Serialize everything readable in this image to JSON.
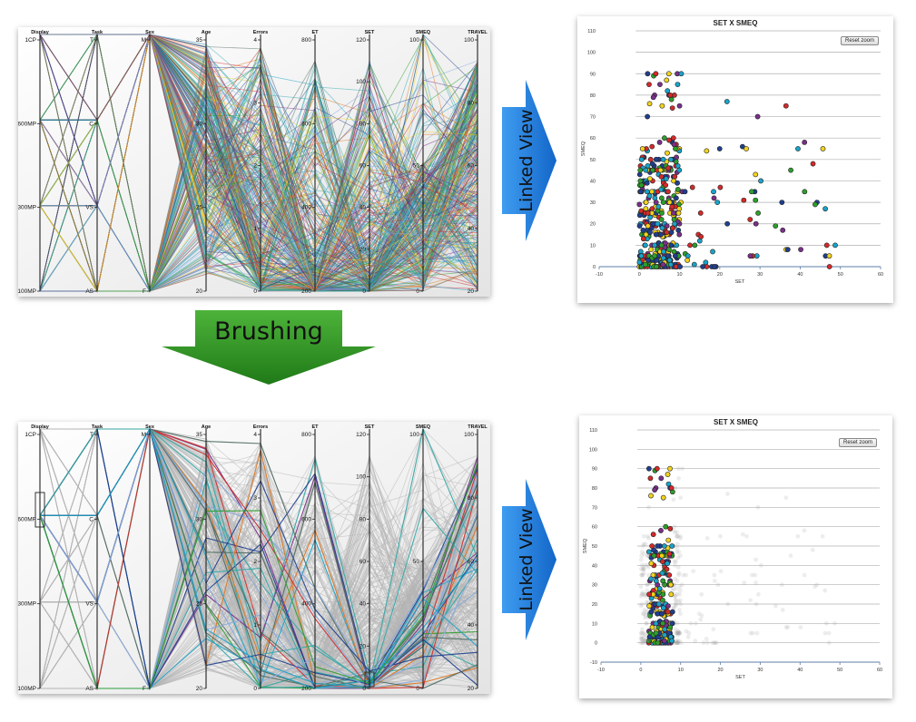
{
  "arrows": {
    "brushing_label": "Brushing",
    "linked_view_top": "Linked View",
    "linked_view_bottom": "Linked View",
    "blue": "#1a78d8",
    "green": "#2e8b1e"
  },
  "chart_data": [
    {
      "type": "parallel_coordinates",
      "state": "before-brushing",
      "axes": [
        {
          "name": "Display",
          "ticks": [
            "1CP",
            "600MP",
            "300MP",
            "100MP"
          ]
        },
        {
          "name": "Task",
          "ticks": [
            "T",
            "C",
            "VS",
            "AS"
          ]
        },
        {
          "name": "Sex",
          "ticks": [
            "M",
            "F"
          ]
        },
        {
          "name": "Age",
          "ticks": [
            "35",
            "30",
            "25",
            "20"
          ],
          "range": [
            18,
            36
          ]
        },
        {
          "name": "Errors",
          "ticks": [
            "4",
            "3",
            "2",
            "1",
            "0"
          ],
          "range": [
            0,
            5
          ]
        },
        {
          "name": "ET",
          "ticks": [
            "800",
            "600",
            "400",
            "200"
          ],
          "range": [
            0,
            820
          ]
        },
        {
          "name": "SET",
          "ticks": [
            "120",
            "100",
            "80",
            "60",
            "40",
            "20",
            "0"
          ],
          "range": [
            0,
            130
          ]
        },
        {
          "name": "SMEQ",
          "ticks": [
            "100",
            "50",
            "0"
          ],
          "range": [
            0,
            110
          ]
        },
        {
          "name": "TRAVEL",
          "ticks": [
            "100",
            "80",
            "60",
            "40",
            "20"
          ],
          "range": [
            0,
            115
          ]
        }
      ]
    },
    {
      "type": "scatter",
      "state": "before-brushing",
      "title": "SET X SMEQ",
      "xlabel": "SET",
      "ylabel": "SMEQ",
      "xlim": [
        -10,
        60
      ],
      "ylim": [
        0,
        110
      ],
      "xticks": [
        "-10",
        "0",
        "10",
        "20",
        "30",
        "40",
        "50",
        "60"
      ],
      "yticks": [
        "0",
        "10",
        "20",
        "30",
        "40",
        "50",
        "60",
        "70",
        "80",
        "90",
        "100",
        "110"
      ],
      "reset_zoom": "Reset zoom"
    },
    {
      "type": "parallel_coordinates",
      "state": "after-brushing",
      "axes": [
        {
          "name": "Display",
          "ticks": [
            "1CP",
            "600MP",
            "300MP",
            "100MP"
          ]
        },
        {
          "name": "Task",
          "ticks": [
            "T",
            "C",
            "VS",
            "AS"
          ]
        },
        {
          "name": "Sex",
          "ticks": [
            "M",
            "F"
          ]
        },
        {
          "name": "Age",
          "ticks": [
            "35",
            "30",
            "25",
            "20"
          ],
          "range": [
            18,
            36
          ]
        },
        {
          "name": "Errors",
          "ticks": [
            "4",
            "3",
            "2",
            "1",
            "0"
          ],
          "range": [
            0,
            5
          ]
        },
        {
          "name": "ET",
          "ticks": [
            "800",
            "600",
            "400",
            "200"
          ],
          "range": [
            0,
            820
          ]
        },
        {
          "name": "SET",
          "ticks": [
            "120",
            "100",
            "80",
            "60",
            "40",
            "20",
            "0"
          ],
          "range": [
            0,
            130
          ]
        },
        {
          "name": "SMEQ",
          "ticks": [
            "100",
            "50",
            "0"
          ],
          "range": [
            0,
            110
          ]
        },
        {
          "name": "TRAVEL",
          "ticks": [
            "100",
            "80",
            "60",
            "40",
            "20"
          ],
          "range": [
            0,
            115
          ]
        }
      ]
    },
    {
      "type": "scatter",
      "state": "after-brushing",
      "title": "SET X SMEQ",
      "xlabel": "SET",
      "ylabel": "SMEQ",
      "xlim": [
        -10,
        60
      ],
      "ylim": [
        -10,
        110
      ],
      "xticks": [
        "-10",
        "0",
        "10",
        "20",
        "30",
        "40",
        "50",
        "60"
      ],
      "yticks": [
        "-10",
        "0",
        "10",
        "20",
        "30",
        "40",
        "50",
        "60",
        "70",
        "80",
        "90",
        "100",
        "110"
      ],
      "reset_zoom": "Reset zoom"
    }
  ],
  "palette": [
    "#1f3f8f",
    "#d42a2a",
    "#f2d21b",
    "#2c9f2c",
    "#19a3c9",
    "#7a2f8a",
    "#e0761d",
    "#4e6a5f"
  ]
}
